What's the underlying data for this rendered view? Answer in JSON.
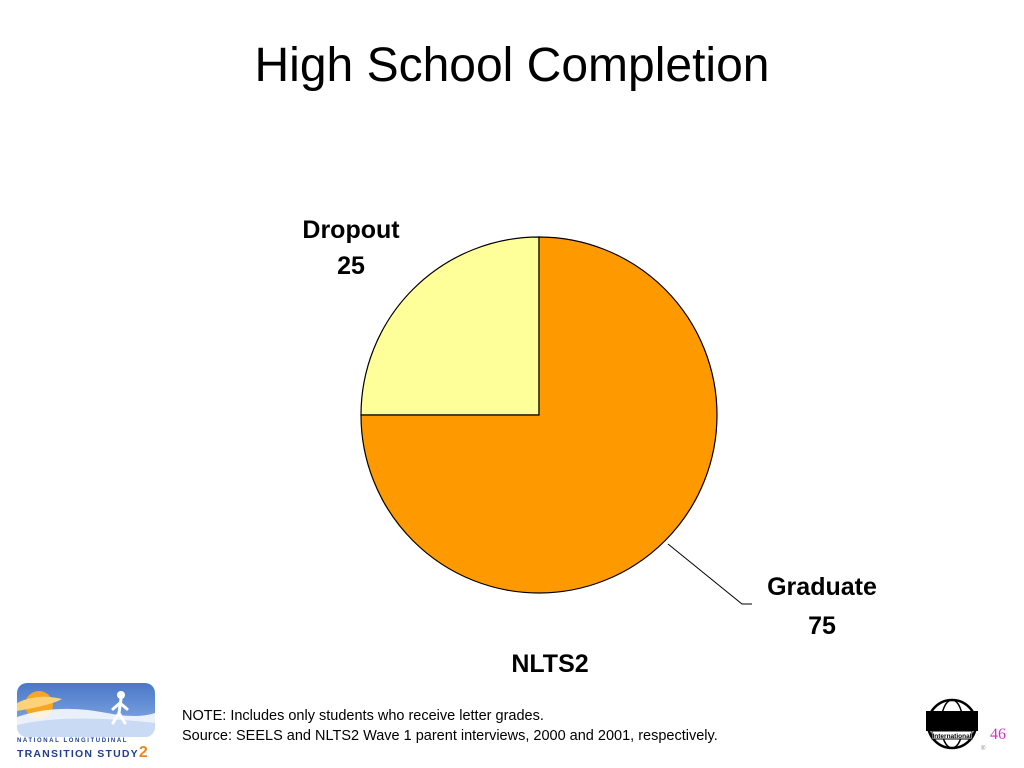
{
  "slide": {
    "title": "High School Completion",
    "page_number": "46"
  },
  "chart_data": {
    "type": "pie",
    "title": "",
    "caption": "NLTS2",
    "slices": [
      {
        "label": "Dropout",
        "value": 25,
        "color": "#FFFF99"
      },
      {
        "label": "Graduate",
        "value": 75,
        "color": "#FF9900"
      }
    ]
  },
  "notes": {
    "note": "NOTE: Includes only students who receive letter grades.",
    "source": "Source: SEELS and NLTS2 Wave 1 parent interviews, 2000 and 2001, respectively."
  },
  "logos": {
    "nlts2": {
      "line1": "NATIONAL LONGITUDINAL",
      "line2": "TRANSITION STUDY",
      "number": "2"
    },
    "sri": {
      "name": "SRI",
      "subtitle": "International"
    }
  }
}
